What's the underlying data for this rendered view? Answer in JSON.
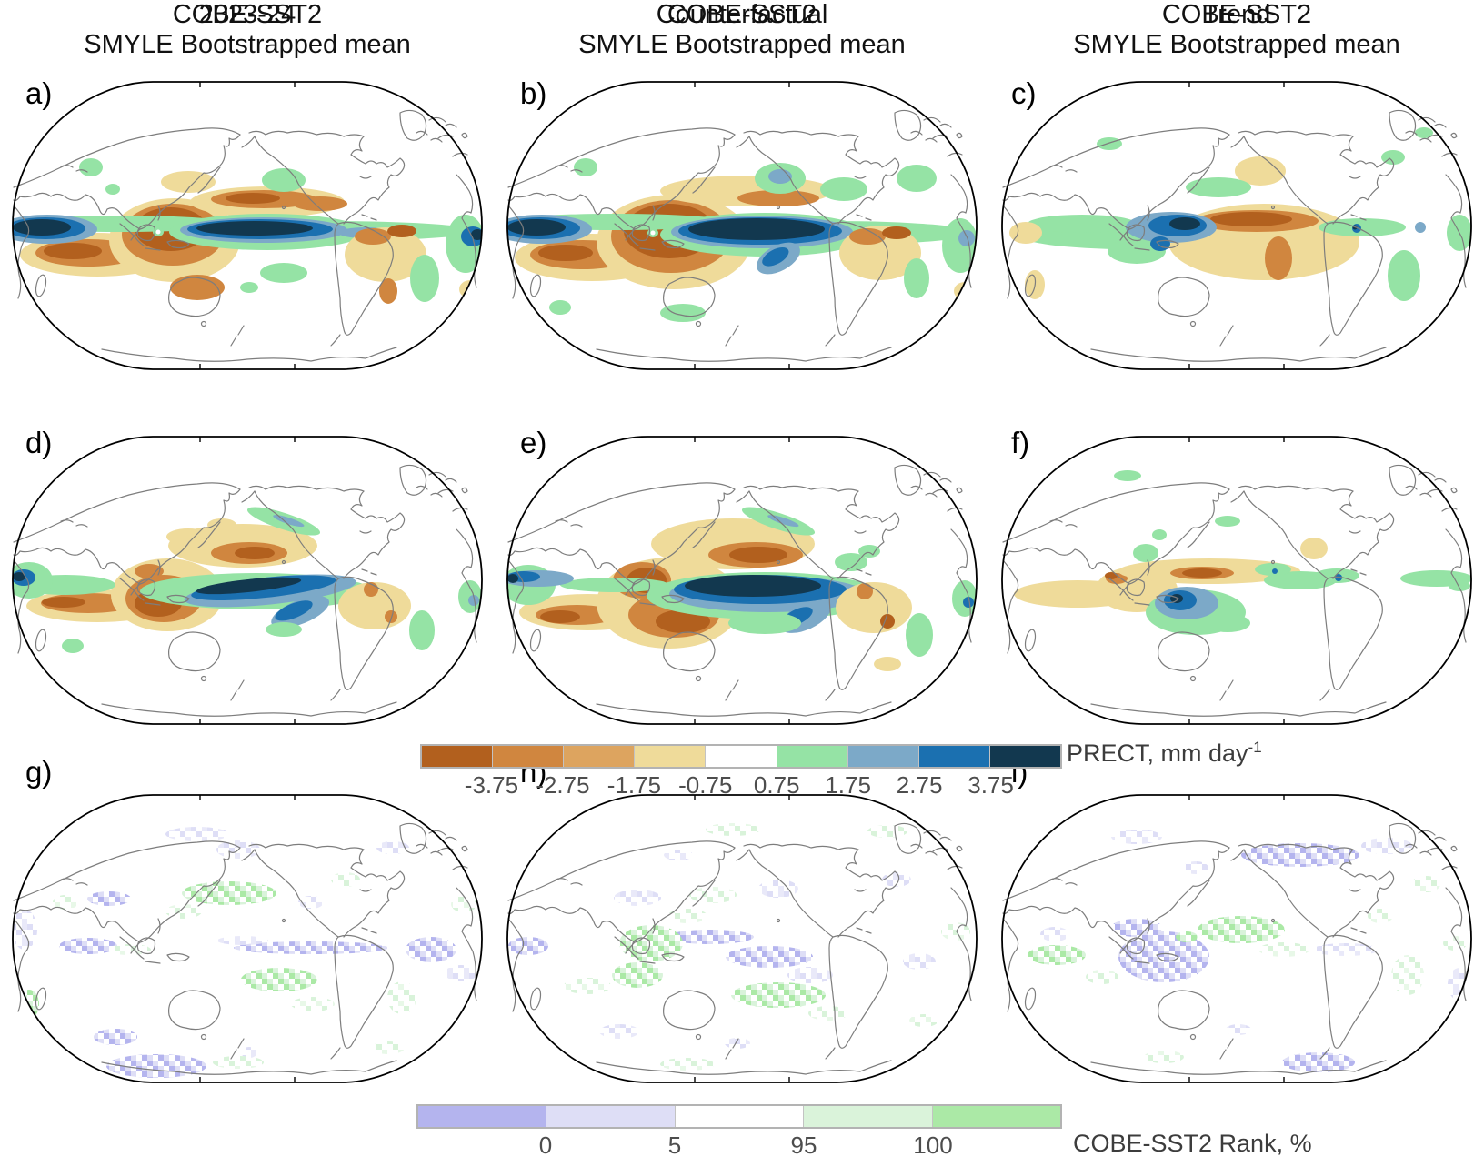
{
  "columns": [
    {
      "top_title_line1": "2023-24",
      "top_title_line2": "SMYLE Bootstrapped mean",
      "mid_title": "COBE-SST2"
    },
    {
      "top_title_line1": "Counterfactual",
      "top_title_line2": "SMYLE Bootstrapped mean",
      "mid_title": "COBE-SST2"
    },
    {
      "top_title_line1": "Trend",
      "top_title_line2": "SMYLE Bootstrapped mean",
      "mid_title": "COBE-SST2"
    }
  ],
  "panel_labels": [
    "a)",
    "b)",
    "c)",
    "d)",
    "e)",
    "f)",
    "g)",
    "h)",
    "i)"
  ],
  "chart_data": [
    {
      "type": "heatmap",
      "title": "2023-24 SMYLE Bootstrapped mean",
      "panel": "a",
      "variable": "PRECT anomaly (mm/day)",
      "projection": "global Robinson, Pacific-centered",
      "features": "wet (blue >3.75) band equatorial central Pacific and west Indian Ocean; dry (brown <-3.75) Maritime Continent, south Indian Ocean and NW tropical Pacific; wet NE South America coast"
    },
    {
      "type": "heatmap",
      "title": "Counterfactual SMYLE Bootstrapped mean",
      "panel": "b",
      "variable": "PRECT anomaly (mm/day)",
      "features": "stronger/larger wet core in central Pacific; stronger drying over Maritime Continent and Australia; wet spot NE Pacific"
    },
    {
      "type": "heatmap",
      "title": "Trend SMYLE Bootstrapped mean",
      "panel": "c",
      "variable": "PRECT anomaly (mm/day)",
      "features": "wet west Pacific/Philippines, dry band central North Pacific, green band along equator"
    },
    {
      "type": "heatmap",
      "title": "COBE-SST2",
      "panel": "d",
      "variable": "PRECT anomaly (mm/day)",
      "features": "narrow wet wedge central equatorial Pacific with SE tail; dry south Indian Ocean band and Maritime Continent; dry spot N-central Pacific"
    },
    {
      "type": "heatmap",
      "title": "COBE-SST2",
      "panel": "e",
      "variable": "PRECT anomaly (mm/day)",
      "features": "larger wet wedge central Pacific; dry SE of New Guinea; dry south Indian Ocean"
    },
    {
      "type": "heatmap",
      "title": "COBE-SST2",
      "panel": "f",
      "variable": "PRECT anomaly (mm/day)",
      "features": "weak pattern; wet blob SW Pacific near Solomon Islands; tan dry band ~10N Pacific; green equatorial east Pacific and Atlantic"
    },
    {
      "type": "heatmap",
      "panel": "g",
      "variable": "COBE-SST2 Rank (%)",
      "features": "faint pixelated low-rank (purple) equatorial east Pacific streak and Antarctic patch; high-rank (green) North and South Pacific arcs"
    },
    {
      "type": "heatmap",
      "panel": "h",
      "variable": "COBE-SST2 Rank (%)",
      "features": "purple equatorial Pacific and west Indian Ocean; green Maritime Continent and South Pacific"
    },
    {
      "type": "heatmap",
      "panel": "i",
      "variable": "COBE-SST2 Rank (%)",
      "features": "dense purple west Pacific and northern North America; green central Pacific and Indian Ocean"
    }
  ],
  "colorbar_prect": {
    "label": "PRECT, mm day",
    "label_superscript": "-1",
    "ticks": [
      "-3.75",
      "-2.75",
      "-1.75",
      "-0.75",
      "0.75",
      "1.75",
      "2.75",
      "3.75"
    ],
    "segment_colors": [
      "#b2601e",
      "#d0863f",
      "#dda45f",
      "#efdb9a",
      "#ffffff",
      "#95e3a5",
      "#7ca9c8",
      "#1b70b0",
      "#12384f"
    ]
  },
  "colorbar_rank": {
    "label": "COBE-SST2 Rank, %",
    "ticks": [
      "0",
      "5",
      "95",
      "100"
    ],
    "segment_colors": [
      "#b4b4ee",
      "#dedef6",
      "#ffffff",
      "#daf3da",
      "#abe9a6"
    ]
  }
}
